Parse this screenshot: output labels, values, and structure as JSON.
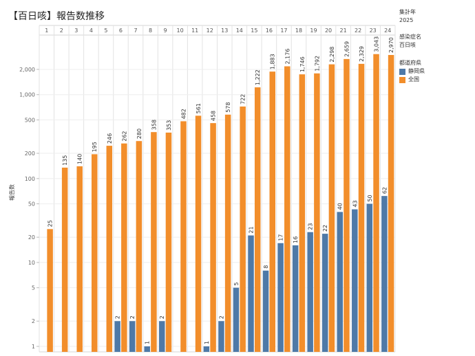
{
  "title": "【百日咳】報告数推移",
  "filters": {
    "year_label": "集計年",
    "year_value": "2025",
    "disease_label": "感染症名",
    "disease_value": "百日咳"
  },
  "legend": {
    "title": "都道府県",
    "colors": {
      "shizuoka": "#4e79a7",
      "national": "#f28e2b"
    }
  },
  "chart_data": {
    "type": "bar",
    "categories": [
      "1",
      "2",
      "3",
      "4",
      "5",
      "6",
      "7",
      "8",
      "9",
      "10",
      "11",
      "12",
      "13",
      "14",
      "15",
      "16",
      "17",
      "18",
      "19",
      "20",
      "21",
      "22",
      "23",
      "24"
    ],
    "series": [
      {
        "name": "静岡県",
        "values": [
          null,
          null,
          null,
          null,
          null,
          2,
          2,
          1,
          2,
          null,
          null,
          1,
          2,
          5,
          21,
          8,
          17,
          16,
          23,
          22,
          40,
          43,
          50,
          62
        ]
      },
      {
        "name": "全国",
        "values": [
          25,
          135,
          140,
          195,
          246,
          262,
          280,
          358,
          353,
          482,
          561,
          458,
          578,
          722,
          1222,
          1883,
          2176,
          1746,
          1792,
          2298,
          2659,
          2329,
          3043,
          2970
        ]
      }
    ],
    "ylabel": "報告数",
    "yscale": "log",
    "ylim": [
      1,
      5000
    ],
    "yticks": [
      1,
      2,
      5,
      10,
      20,
      50,
      100,
      200,
      500,
      1000,
      2000
    ],
    "ytick_labels": [
      "1",
      "2",
      "5",
      "10",
      "20",
      "50",
      "100",
      "200",
      "500",
      "1,000",
      "2,000"
    ],
    "grid": true
  }
}
